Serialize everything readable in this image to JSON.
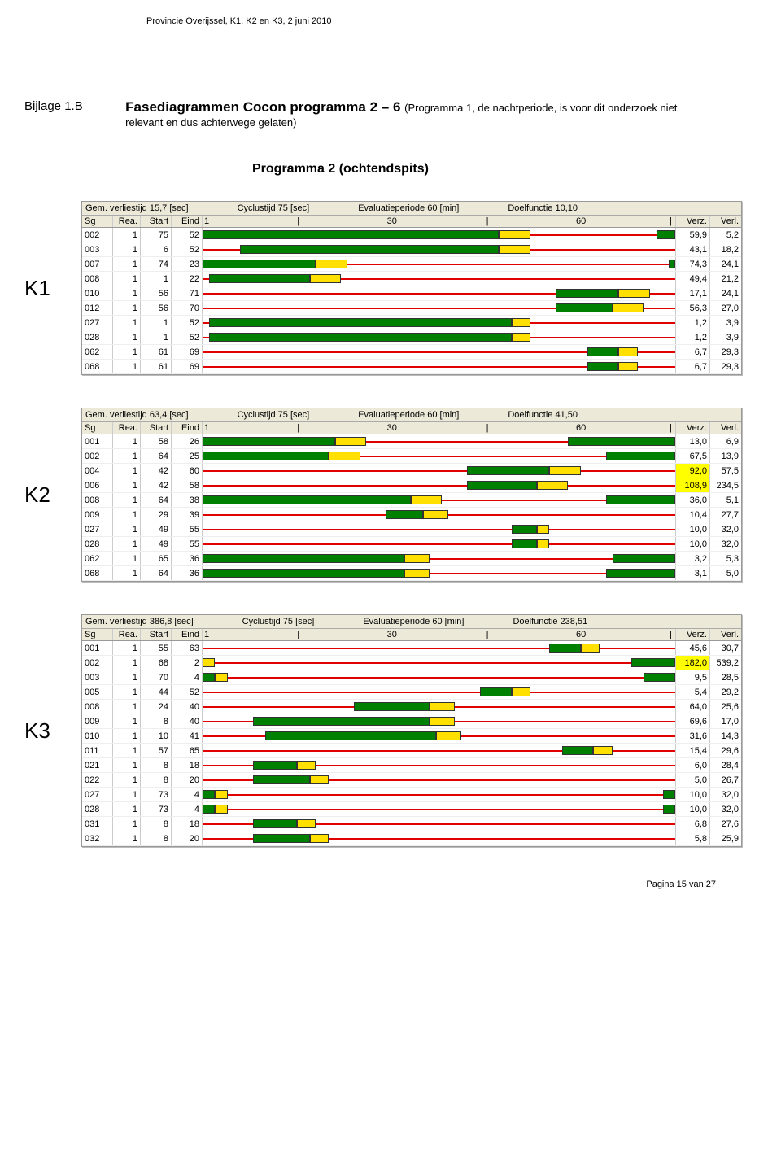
{
  "header_note": "Provincie Overijssel, K1, K2 en K3, 2 juni 2010",
  "section_label": "Bijlage  1.B",
  "section_title_bold": "Fasediagrammen Cocon programma 2 – 6 ",
  "section_title_small": "(Programma 1, de nachtperiode, is voor dit onderzoek niet relevant en dus achterwege gelaten)",
  "subtitle": "Programma 2 (ochtendspits)",
  "footer": "Pagina 15 van 27",
  "col_headers": {
    "sg": "Sg",
    "rea": "Rea.",
    "start": "Start",
    "eind": "Eind",
    "verz": "Verz.",
    "verl": "Verl."
  },
  "axis_ticks": {
    "t1": "1",
    "t30": "30",
    "t60": "60"
  },
  "cycle": 75,
  "colors": {
    "red": "#e00000",
    "green": "#008000",
    "yellow": "#ffe000",
    "panel_bg": "#ece9d8",
    "highlight": "#ffff00"
  },
  "diagrams": [
    {
      "klabel": "K1",
      "meta": {
        "verlies": "Gem. verliestijd 15,7 [sec]",
        "cyclus": "Cyclustijd 75 [sec]",
        "eval": "Evaluatieperiode 60 [min]",
        "doel": "Doelfunctie 10,10"
      },
      "rows": [
        {
          "sg": "002",
          "rea": "1",
          "start": "75",
          "eind": "52",
          "verz": "59,9",
          "verl": "5,2",
          "bars": [
            {
              "c": "green",
              "s": 0,
              "e": 47
            },
            {
              "c": "yellow",
              "s": 47,
              "e": 52
            },
            {
              "c": "green",
              "s": 72,
              "e": 75
            }
          ]
        },
        {
          "sg": "003",
          "rea": "1",
          "start": "6",
          "eind": "52",
          "verz": "43,1",
          "verl": "18,2",
          "bars": [
            {
              "c": "green",
              "s": 6,
              "e": 47
            },
            {
              "c": "yellow",
              "s": 47,
              "e": 52
            }
          ]
        },
        {
          "sg": "007",
          "rea": "1",
          "start": "74",
          "eind": "23",
          "verz": "74,3",
          "verl": "24,1",
          "bars": [
            {
              "c": "green",
              "s": 0,
              "e": 18
            },
            {
              "c": "yellow",
              "s": 18,
              "e": 23
            },
            {
              "c": "green",
              "s": 74,
              "e": 75
            }
          ]
        },
        {
          "sg": "008",
          "rea": "1",
          "start": "1",
          "eind": "22",
          "verz": "49,4",
          "verl": "21,2",
          "bars": [
            {
              "c": "green",
              "s": 1,
              "e": 17
            },
            {
              "c": "yellow",
              "s": 17,
              "e": 22
            }
          ]
        },
        {
          "sg": "010",
          "rea": "1",
          "start": "56",
          "eind": "71",
          "verz": "17,1",
          "verl": "24,1",
          "bars": [
            {
              "c": "green",
              "s": 56,
              "e": 66
            },
            {
              "c": "yellow",
              "s": 66,
              "e": 71
            }
          ]
        },
        {
          "sg": "012",
          "rea": "1",
          "start": "56",
          "eind": "70",
          "verz": "56,3",
          "verl": "27,0",
          "bars": [
            {
              "c": "green",
              "s": 56,
              "e": 65
            },
            {
              "c": "yellow",
              "s": 65,
              "e": 70
            }
          ]
        },
        {
          "sg": "027",
          "rea": "1",
          "start": "1",
          "eind": "52",
          "verz": "1,2",
          "verl": "3,9",
          "bars": [
            {
              "c": "green",
              "s": 1,
              "e": 49
            },
            {
              "c": "yellow",
              "s": 49,
              "e": 52
            }
          ]
        },
        {
          "sg": "028",
          "rea": "1",
          "start": "1",
          "eind": "52",
          "verz": "1,2",
          "verl": "3,9",
          "bars": [
            {
              "c": "green",
              "s": 1,
              "e": 49
            },
            {
              "c": "yellow",
              "s": 49,
              "e": 52
            }
          ]
        },
        {
          "sg": "062",
          "rea": "1",
          "start": "61",
          "eind": "69",
          "verz": "6,7",
          "verl": "29,3",
          "bars": [
            {
              "c": "green",
              "s": 61,
              "e": 66
            },
            {
              "c": "yellow",
              "s": 66,
              "e": 69
            }
          ]
        },
        {
          "sg": "068",
          "rea": "1",
          "start": "61",
          "eind": "69",
          "verz": "6,7",
          "verl": "29,3",
          "bars": [
            {
              "c": "green",
              "s": 61,
              "e": 66
            },
            {
              "c": "yellow",
              "s": 66,
              "e": 69
            }
          ]
        }
      ]
    },
    {
      "klabel": "K2",
      "meta": {
        "verlies": "Gem. verliestijd 63,4 [sec]",
        "cyclus": "Cyclustijd 75 [sec]",
        "eval": "Evaluatieperiode 60 [min]",
        "doel": "Doelfunctie 41,50"
      },
      "rows": [
        {
          "sg": "001",
          "rea": "1",
          "start": "58",
          "eind": "26",
          "verz": "13,0",
          "verl": "6,9",
          "bars": [
            {
              "c": "green",
              "s": 0,
              "e": 21
            },
            {
              "c": "yellow",
              "s": 21,
              "e": 26
            },
            {
              "c": "green",
              "s": 58,
              "e": 75
            }
          ]
        },
        {
          "sg": "002",
          "rea": "1",
          "start": "64",
          "eind": "25",
          "verz": "67,5",
          "verl": "13,9",
          "bars": [
            {
              "c": "green",
              "s": 0,
              "e": 20
            },
            {
              "c": "yellow",
              "s": 20,
              "e": 25
            },
            {
              "c": "green",
              "s": 64,
              "e": 75
            }
          ]
        },
        {
          "sg": "004",
          "rea": "1",
          "start": "42",
          "eind": "60",
          "verz": "92,0",
          "verl": "57,5",
          "hl": "verz",
          "bars": [
            {
              "c": "green",
              "s": 42,
              "e": 55
            },
            {
              "c": "yellow",
              "s": 55,
              "e": 60
            }
          ]
        },
        {
          "sg": "006",
          "rea": "1",
          "start": "42",
          "eind": "58",
          "verz": "108,9",
          "verl": "234,5",
          "hl": "verz",
          "bars": [
            {
              "c": "green",
              "s": 42,
              "e": 53
            },
            {
              "c": "yellow",
              "s": 53,
              "e": 58
            }
          ]
        },
        {
          "sg": "008",
          "rea": "1",
          "start": "64",
          "eind": "38",
          "verz": "36,0",
          "verl": "5,1",
          "bars": [
            {
              "c": "green",
              "s": 0,
              "e": 33
            },
            {
              "c": "yellow",
              "s": 33,
              "e": 38
            },
            {
              "c": "green",
              "s": 64,
              "e": 75
            }
          ]
        },
        {
          "sg": "009",
          "rea": "1",
          "start": "29",
          "eind": "39",
          "verz": "10,4",
          "verl": "27,7",
          "bars": [
            {
              "c": "green",
              "s": 29,
              "e": 35
            },
            {
              "c": "yellow",
              "s": 35,
              "e": 39
            }
          ]
        },
        {
          "sg": "027",
          "rea": "1",
          "start": "49",
          "eind": "55",
          "verz": "10,0",
          "verl": "32,0",
          "bars": [
            {
              "c": "green",
              "s": 49,
              "e": 53
            },
            {
              "c": "yellow",
              "s": 53,
              "e": 55
            }
          ]
        },
        {
          "sg": "028",
          "rea": "1",
          "start": "49",
          "eind": "55",
          "verz": "10,0",
          "verl": "32,0",
          "bars": [
            {
              "c": "green",
              "s": 49,
              "e": 53
            },
            {
              "c": "yellow",
              "s": 53,
              "e": 55
            }
          ]
        },
        {
          "sg": "062",
          "rea": "1",
          "start": "65",
          "eind": "36",
          "verz": "3,2",
          "verl": "5,3",
          "bars": [
            {
              "c": "green",
              "s": 0,
              "e": 32
            },
            {
              "c": "yellow",
              "s": 32,
              "e": 36
            },
            {
              "c": "green",
              "s": 65,
              "e": 75
            }
          ]
        },
        {
          "sg": "068",
          "rea": "1",
          "start": "64",
          "eind": "36",
          "verz": "3,1",
          "verl": "5,0",
          "bars": [
            {
              "c": "green",
              "s": 0,
              "e": 32
            },
            {
              "c": "yellow",
              "s": 32,
              "e": 36
            },
            {
              "c": "green",
              "s": 64,
              "e": 75
            }
          ]
        }
      ]
    },
    {
      "klabel": "K3",
      "meta": {
        "verlies": "Gem. verliestijd 386,8 [sec]",
        "cyclus": "Cyclustijd 75 [sec]",
        "eval": "Evaluatieperiode 60 [min]",
        "doel": "Doelfunctie 238,51"
      },
      "rows": [
        {
          "sg": "001",
          "rea": "1",
          "start": "55",
          "eind": "63",
          "verz": "45,6",
          "verl": "30,7",
          "bars": [
            {
              "c": "green",
              "s": 55,
              "e": 60
            },
            {
              "c": "yellow",
              "s": 60,
              "e": 63
            }
          ]
        },
        {
          "sg": "002",
          "rea": "1",
          "start": "68",
          "eind": "2",
          "verz": "182,0",
          "verl": "539,2",
          "hl": "verz",
          "bars": [
            {
              "c": "yellow",
              "s": 0,
              "e": 2
            },
            {
              "c": "green",
              "s": 68,
              "e": 75
            }
          ]
        },
        {
          "sg": "003",
          "rea": "1",
          "start": "70",
          "eind": "4",
          "verz": "9,5",
          "verl": "28,5",
          "bars": [
            {
              "c": "green",
              "s": 0,
              "e": 2
            },
            {
              "c": "yellow",
              "s": 2,
              "e": 4
            },
            {
              "c": "green",
              "s": 70,
              "e": 75
            }
          ]
        },
        {
          "sg": "005",
          "rea": "1",
          "start": "44",
          "eind": "52",
          "verz": "5,4",
          "verl": "29,2",
          "bars": [
            {
              "c": "green",
              "s": 44,
              "e": 49
            },
            {
              "c": "yellow",
              "s": 49,
              "e": 52
            }
          ]
        },
        {
          "sg": "008",
          "rea": "1",
          "start": "24",
          "eind": "40",
          "verz": "64,0",
          "verl": "25,6",
          "bars": [
            {
              "c": "green",
              "s": 24,
              "e": 36
            },
            {
              "c": "yellow",
              "s": 36,
              "e": 40
            }
          ]
        },
        {
          "sg": "009",
          "rea": "1",
          "start": "8",
          "eind": "40",
          "verz": "69,6",
          "verl": "17,0",
          "bars": [
            {
              "c": "green",
              "s": 8,
              "e": 36
            },
            {
              "c": "yellow",
              "s": 36,
              "e": 40
            }
          ]
        },
        {
          "sg": "010",
          "rea": "1",
          "start": "10",
          "eind": "41",
          "verz": "31,6",
          "verl": "14,3",
          "bars": [
            {
              "c": "green",
              "s": 10,
              "e": 37
            },
            {
              "c": "yellow",
              "s": 37,
              "e": 41
            }
          ]
        },
        {
          "sg": "011",
          "rea": "1",
          "start": "57",
          "eind": "65",
          "verz": "15,4",
          "verl": "29,6",
          "bars": [
            {
              "c": "green",
              "s": 57,
              "e": 62
            },
            {
              "c": "yellow",
              "s": 62,
              "e": 65
            }
          ]
        },
        {
          "sg": "021",
          "rea": "1",
          "start": "8",
          "eind": "18",
          "verz": "6,0",
          "verl": "28,4",
          "bars": [
            {
              "c": "green",
              "s": 8,
              "e": 15
            },
            {
              "c": "yellow",
              "s": 15,
              "e": 18
            }
          ]
        },
        {
          "sg": "022",
          "rea": "1",
          "start": "8",
          "eind": "20",
          "verz": "5,0",
          "verl": "26,7",
          "bars": [
            {
              "c": "green",
              "s": 8,
              "e": 17
            },
            {
              "c": "yellow",
              "s": 17,
              "e": 20
            }
          ]
        },
        {
          "sg": "027",
          "rea": "1",
          "start": "73",
          "eind": "4",
          "verz": "10,0",
          "verl": "32,0",
          "bars": [
            {
              "c": "green",
              "s": 0,
              "e": 2
            },
            {
              "c": "yellow",
              "s": 2,
              "e": 4
            },
            {
              "c": "green",
              "s": 73,
              "e": 75
            }
          ]
        },
        {
          "sg": "028",
          "rea": "1",
          "start": "73",
          "eind": "4",
          "verz": "10,0",
          "verl": "32,0",
          "bars": [
            {
              "c": "green",
              "s": 0,
              "e": 2
            },
            {
              "c": "yellow",
              "s": 2,
              "e": 4
            },
            {
              "c": "green",
              "s": 73,
              "e": 75
            }
          ]
        },
        {
          "sg": "031",
          "rea": "1",
          "start": "8",
          "eind": "18",
          "verz": "6,8",
          "verl": "27,6",
          "bars": [
            {
              "c": "green",
              "s": 8,
              "e": 15
            },
            {
              "c": "yellow",
              "s": 15,
              "e": 18
            }
          ]
        },
        {
          "sg": "032",
          "rea": "1",
          "start": "8",
          "eind": "20",
          "verz": "5,8",
          "verl": "25,9",
          "bars": [
            {
              "c": "green",
              "s": 8,
              "e": 17
            },
            {
              "c": "yellow",
              "s": 17,
              "e": 20
            }
          ]
        }
      ]
    }
  ]
}
